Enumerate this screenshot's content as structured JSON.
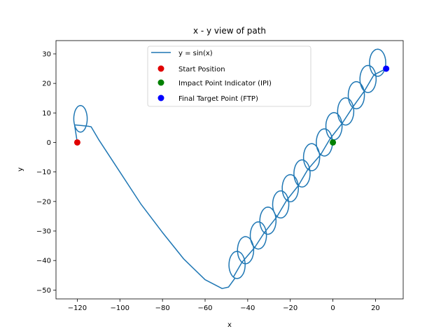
{
  "chart_data": {
    "type": "line",
    "title": "x - y view of path",
    "xlabel": "x",
    "ylabel": "y",
    "xlim": [
      -130,
      33
    ],
    "ylim": [
      -53,
      34.5
    ],
    "xticks": [
      -120,
      -100,
      -80,
      -60,
      -40,
      -20,
      0,
      20
    ],
    "xtick_labels": [
      "−120",
      "−100",
      "−80",
      "−60",
      "−40",
      "−20",
      "0",
      "20"
    ],
    "yticks": [
      -50,
      -40,
      -30,
      -20,
      -10,
      0,
      10,
      20,
      30
    ],
    "ytick_labels": [
      "−50",
      "−40",
      "−30",
      "−20",
      "−10",
      "0",
      "10",
      "20",
      "30"
    ],
    "grid": false,
    "legend_position": "top-center",
    "series": [
      {
        "name": "y = sin(x)",
        "kind": "line",
        "color": "#1f77b4",
        "segments": [
          {
            "shape": "loop",
            "center": [
              -118.5,
              8
            ],
            "radius": [
              3.5,
              4.5
            ],
            "entry": [
              -120,
              0
            ]
          },
          {
            "shape": "curve",
            "points": [
              [
                -115,
                5.5
              ],
              [
                -113.5,
                5.3
              ],
              [
                -110,
                1
              ],
              [
                -100,
                -10
              ],
              [
                -90,
                -21
              ],
              [
                -80,
                -30.5
              ],
              [
                -70,
                -39.5
              ],
              [
                -60,
                -46.5
              ],
              [
                -52,
                -49.5
              ],
              [
                -49,
                -49
              ],
              [
                -46,
                -46
              ]
            ]
          },
          {
            "shape": "loop-chain",
            "description": "sequence of loops along rising diagonal",
            "loop_centers": [
              [
                -45,
                -41.5
              ],
              [
                -41,
                -36.5
              ],
              [
                -35,
                -31.5
              ],
              [
                -30.5,
                -26.5
              ],
              [
                -24.5,
                -21
              ],
              [
                -20,
                -15.5
              ],
              [
                -14.5,
                -10.5
              ],
              [
                -10,
                -5
              ],
              [
                -4,
                0
              ],
              [
                0.5,
                5.5
              ],
              [
                6,
                10.5
              ],
              [
                11,
                16
              ],
              [
                16.5,
                21.5
              ],
              [
                21,
                27
              ]
            ],
            "loop_radius": [
              3.8,
              4.6
            ],
            "end": [
              25,
              25
            ]
          }
        ]
      },
      {
        "name": "Start Position",
        "kind": "point",
        "color": "#e00000",
        "x": -120,
        "y": 0
      },
      {
        "name": "Impact Point Indicator (IPI)",
        "kind": "point",
        "color": "#008000",
        "x": 0,
        "y": 0
      },
      {
        "name": "Final Target Point (FTP)",
        "kind": "point",
        "color": "#0000ff",
        "x": 25,
        "y": 25
      }
    ]
  }
}
